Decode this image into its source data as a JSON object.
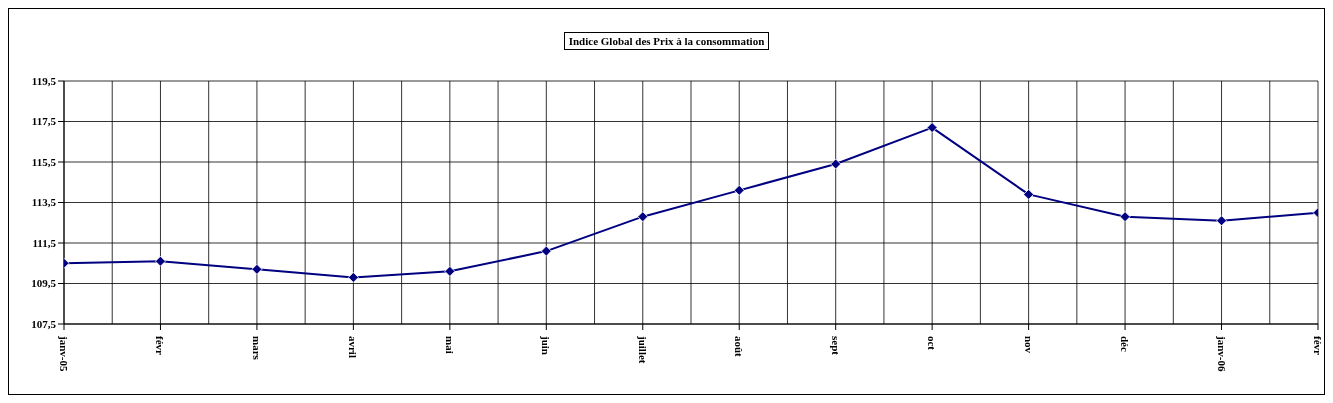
{
  "chart_data": {
    "type": "line",
    "title": "Indice Global des Prix à la consommation",
    "categories": [
      "janv-05",
      "févr",
      "mars",
      "avril",
      "mai",
      "juin",
      "juillet",
      "août",
      "sept",
      "oct",
      "nov",
      "déc",
      "janv-06",
      "févr"
    ],
    "series": [
      {
        "color": "#000080",
        "values": [
          110.5,
          110.6,
          110.2,
          109.8,
          110.1,
          111.1,
          112.8,
          114.1,
          115.4,
          117.2,
          113.9,
          112.8,
          112.6,
          113.0
        ]
      }
    ],
    "ylim": [
      107.5,
      119.5
    ],
    "yticks": [
      {
        "value": 107.5,
        "label": "107,5"
      },
      {
        "value": 109.5,
        "label": "109,5"
      },
      {
        "value": 111.5,
        "label": "111,5"
      },
      {
        "value": 113.5,
        "label": "113,5"
      },
      {
        "value": 115.5,
        "label": "115,5"
      },
      {
        "value": 117.5,
        "label": "117,5"
      },
      {
        "value": 119.5,
        "label": "119,5"
      }
    ],
    "grid": true,
    "marker": "diamond",
    "line_style": "solid"
  }
}
